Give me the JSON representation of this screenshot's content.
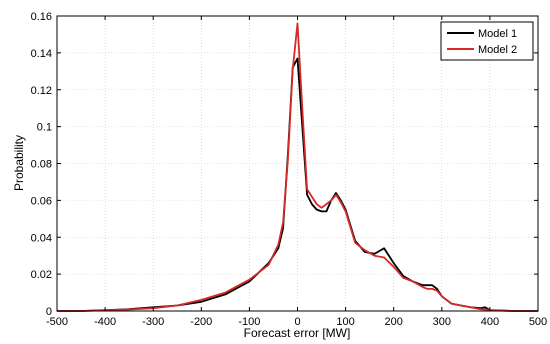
{
  "chart_data": {
    "type": "line",
    "xlabel": "Forecast error [MW]",
    "ylabel": "Probability",
    "xlim": [
      -500,
      500
    ],
    "ylim": [
      0,
      0.16
    ],
    "xticks": [
      "-500",
      "-400",
      "-300",
      "-200",
      "-100",
      "0",
      "100",
      "200",
      "300",
      "400",
      "500"
    ],
    "yticks": [
      "0",
      "0.02",
      "0.04",
      "0.06",
      "0.08",
      "0.1",
      "0.12",
      "0.14",
      "0.16"
    ],
    "grid": true,
    "legend_position": "top-right",
    "series": [
      {
        "name": "Model 1",
        "color": "#000000",
        "x": [
          -500,
          -450,
          -400,
          -350,
          -300,
          -250,
          -200,
          -150,
          -100,
          -80,
          -60,
          -40,
          -30,
          -20,
          -10,
          0,
          10,
          20,
          30,
          40,
          50,
          60,
          70,
          80,
          90,
          100,
          120,
          140,
          160,
          180,
          200,
          220,
          240,
          260,
          270,
          280,
          290,
          300,
          320,
          340,
          360,
          380,
          390,
          400,
          450,
          500
        ],
        "y": [
          0,
          0,
          0.0005,
          0.001,
          0.002,
          0.003,
          0.005,
          0.009,
          0.016,
          0.021,
          0.026,
          0.034,
          0.045,
          0.085,
          0.132,
          0.137,
          0.1,
          0.063,
          0.058,
          0.055,
          0.054,
          0.054,
          0.06,
          0.064,
          0.06,
          0.055,
          0.038,
          0.032,
          0.031,
          0.034,
          0.026,
          0.019,
          0.016,
          0.014,
          0.014,
          0.014,
          0.012,
          0.008,
          0.004,
          0.003,
          0.002,
          0.0015,
          0.002,
          0.0005,
          0,
          0
        ]
      },
      {
        "name": "Model 2",
        "color": "#d42a2a",
        "x": [
          -500,
          -450,
          -400,
          -350,
          -300,
          -250,
          -200,
          -150,
          -100,
          -80,
          -60,
          -40,
          -30,
          -20,
          -10,
          0,
          10,
          20,
          30,
          40,
          50,
          60,
          70,
          80,
          90,
          100,
          120,
          140,
          160,
          180,
          200,
          220,
          240,
          260,
          270,
          280,
          290,
          300,
          320,
          340,
          360,
          380,
          390,
          400,
          450,
          500
        ],
        "y": [
          0,
          0,
          0.0003,
          0.0008,
          0.0015,
          0.003,
          0.006,
          0.01,
          0.017,
          0.021,
          0.025,
          0.036,
          0.048,
          0.082,
          0.131,
          0.156,
          0.11,
          0.066,
          0.062,
          0.058,
          0.056,
          0.058,
          0.06,
          0.063,
          0.059,
          0.054,
          0.037,
          0.033,
          0.03,
          0.029,
          0.024,
          0.018,
          0.016,
          0.013,
          0.012,
          0.012,
          0.011,
          0.008,
          0.004,
          0.003,
          0.002,
          0.001,
          0.0008,
          0.0003,
          0,
          0
        ]
      }
    ]
  }
}
